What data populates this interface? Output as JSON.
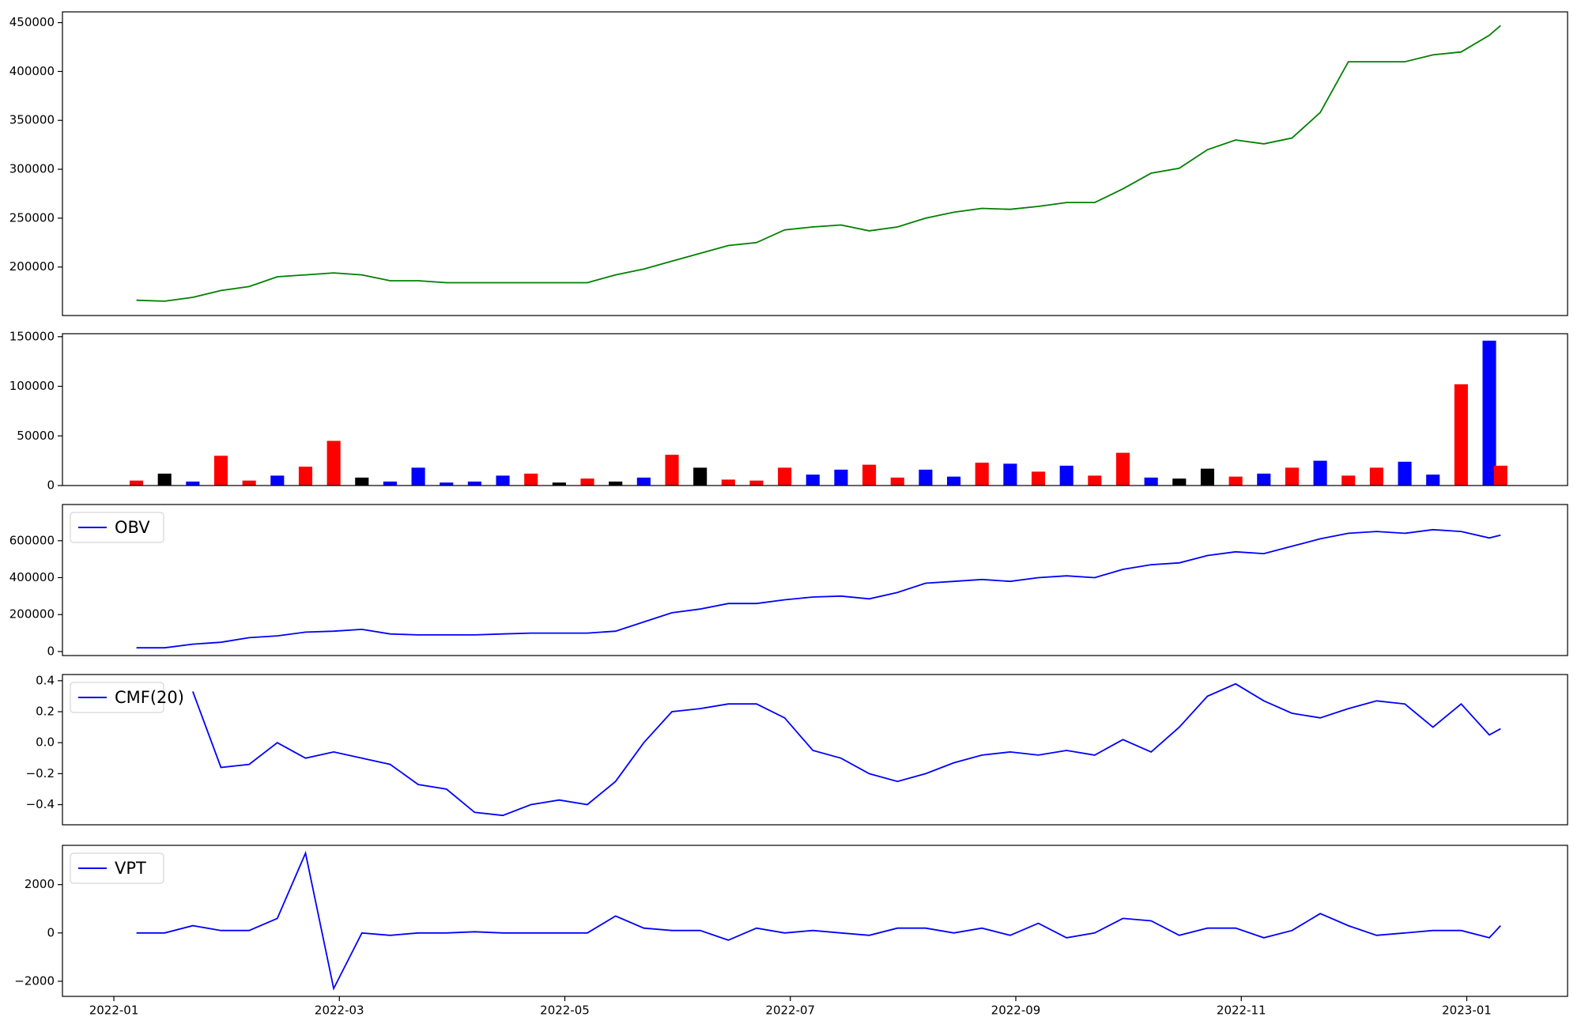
{
  "chart_data": [
    {
      "type": "line",
      "x": [
        1.2,
        1.45,
        1.7,
        1.95,
        2.2,
        2.45,
        2.7,
        2.95,
        3.2,
        3.45,
        3.7,
        3.95,
        4.2,
        4.45,
        4.7,
        4.95,
        5.2,
        5.45,
        5.7,
        5.95,
        6.2,
        6.45,
        6.7,
        6.95,
        7.2,
        7.45,
        7.7,
        7.95,
        8.2,
        8.45,
        8.7,
        8.95,
        9.2,
        9.45,
        9.7,
        9.95,
        10.2,
        10.45,
        10.7,
        10.95,
        11.2,
        11.45,
        11.7,
        11.95,
        12.2,
        12.45,
        12.7,
        12.95,
        13.2,
        13.3
      ],
      "series": [
        {
          "color": "green",
          "values": [
            166000,
            165000,
            169000,
            176000,
            180000,
            190000,
            192000,
            194000,
            192000,
            186000,
            186000,
            184000,
            184000,
            184000,
            184000,
            184000,
            184000,
            192000,
            198000,
            206000,
            214000,
            222000,
            225000,
            238000,
            241000,
            243000,
            237000,
            241000,
            250000,
            256000,
            260000,
            259000,
            262000,
            266000,
            266000,
            280000,
            296000,
            301000,
            320000,
            330000,
            326000,
            332000,
            358000,
            410000,
            410000,
            410000,
            417000,
            420000,
            437000,
            447000
          ]
        }
      ],
      "xlim": [
        0.544,
        13.894
      ],
      "ylim": [
        150400,
        461000
      ],
      "yticks": [
        200000,
        250000,
        300000,
        350000,
        400000,
        450000
      ]
    },
    {
      "type": "bar",
      "x": [
        1.2,
        1.45,
        1.7,
        1.95,
        2.2,
        2.45,
        2.7,
        2.95,
        3.2,
        3.45,
        3.7,
        3.95,
        4.2,
        4.45,
        4.7,
        4.95,
        5.2,
        5.45,
        5.7,
        5.95,
        6.2,
        6.45,
        6.7,
        6.95,
        7.2,
        7.45,
        7.7,
        7.95,
        8.2,
        8.45,
        8.7,
        8.95,
        9.2,
        9.45,
        9.7,
        9.95,
        10.2,
        10.45,
        10.7,
        10.95,
        11.2,
        11.45,
        11.7,
        11.95,
        12.2,
        12.45,
        12.7,
        12.95,
        13.2,
        13.3
      ],
      "values": [
        5000,
        12000,
        4000,
        30000,
        5000,
        10000,
        19000,
        45000,
        8000,
        4000,
        18000,
        3000,
        4000,
        10000,
        12000,
        3000,
        7000,
        4000,
        8000,
        31000,
        18000,
        6000,
        5000,
        18000,
        11000,
        16000,
        21000,
        8000,
        16000,
        9000,
        23000,
        22000,
        14000,
        20000,
        10000,
        33000,
        8000,
        7000,
        17000,
        9000,
        12000,
        18000,
        25000,
        10000,
        18000,
        24000,
        11000,
        102000,
        146000,
        20000
      ],
      "colors": [
        "red",
        "black",
        "blue",
        "red",
        "red",
        "blue",
        "red",
        "red",
        "black",
        "blue",
        "blue",
        "blue",
        "blue",
        "blue",
        "red",
        "black",
        "red",
        "black",
        "blue",
        "red",
        "black",
        "red",
        "red",
        "red",
        "blue",
        "blue",
        "red",
        "red",
        "blue",
        "blue",
        "red",
        "blue",
        "red",
        "blue",
        "red",
        "red",
        "blue",
        "black",
        "black",
        "red",
        "blue",
        "red",
        "blue",
        "red",
        "red",
        "blue",
        "blue",
        "red",
        "blue",
        "red"
      ],
      "xlim": [
        0.544,
        13.894
      ],
      "ylim": [
        0,
        153000
      ],
      "yticks": [
        0,
        50000,
        100000,
        150000
      ]
    },
    {
      "type": "line",
      "x": [
        1.2,
        1.45,
        1.7,
        1.95,
        2.2,
        2.45,
        2.7,
        2.95,
        3.2,
        3.45,
        3.7,
        3.95,
        4.2,
        4.45,
        4.7,
        4.95,
        5.2,
        5.45,
        5.7,
        5.95,
        6.2,
        6.45,
        6.7,
        6.95,
        7.2,
        7.45,
        7.7,
        7.95,
        8.2,
        8.45,
        8.7,
        8.95,
        9.2,
        9.45,
        9.7,
        9.95,
        10.2,
        10.45,
        10.7,
        10.95,
        11.2,
        11.45,
        11.7,
        11.95,
        12.2,
        12.45,
        12.7,
        12.95,
        13.2,
        13.3
      ],
      "series": [
        {
          "name": "OBV",
          "color": "blue",
          "values": [
            20000,
            20000,
            40000,
            50000,
            75000,
            85000,
            105000,
            110000,
            120000,
            95000,
            90000,
            90000,
            90000,
            95000,
            100000,
            100000,
            100000,
            110000,
            160000,
            210000,
            230000,
            260000,
            260000,
            280000,
            295000,
            300000,
            285000,
            320000,
            370000,
            380000,
            390000,
            380000,
            400000,
            410000,
            400000,
            445000,
            470000,
            480000,
            520000,
            540000,
            530000,
            570000,
            610000,
            640000,
            650000,
            640000,
            660000,
            650000,
            615000,
            630000
          ]
        }
      ],
      "legend": "upper left",
      "xlim": [
        0.544,
        13.894
      ],
      "ylim": [
        -21800,
        796000
      ],
      "yticks": [
        0,
        200000,
        400000,
        600000
      ]
    },
    {
      "type": "line",
      "x": [
        1.2,
        1.45,
        1.7,
        1.95,
        2.2,
        2.45,
        2.7,
        2.95,
        3.2,
        3.45,
        3.7,
        3.95,
        4.2,
        4.45,
        4.7,
        4.95,
        5.2,
        5.45,
        5.7,
        5.95,
        6.2,
        6.45,
        6.7,
        6.95,
        7.2,
        7.45,
        7.7,
        7.95,
        8.2,
        8.45,
        8.7,
        8.95,
        9.2,
        9.45,
        9.7,
        9.95,
        10.2,
        10.45,
        10.7,
        10.95,
        11.2,
        11.45,
        11.7,
        11.95,
        12.2,
        12.45,
        12.7,
        12.95,
        13.2,
        13.3
      ],
      "series": [
        {
          "name": "CMF(20)",
          "color": "blue",
          "values": [
            null,
            null,
            0.33,
            -0.16,
            -0.14,
            0.0,
            -0.1,
            -0.06,
            -0.1,
            -0.14,
            -0.27,
            -0.3,
            -0.45,
            -0.47,
            -0.4,
            -0.37,
            -0.4,
            -0.25,
            0.0,
            0.2,
            0.22,
            0.25,
            0.25,
            0.16,
            -0.05,
            -0.1,
            -0.2,
            -0.25,
            -0.2,
            -0.13,
            -0.08,
            -0.06,
            -0.08,
            -0.05,
            -0.08,
            0.02,
            -0.06,
            0.1,
            0.3,
            0.38,
            0.27,
            0.19,
            0.16,
            0.22,
            0.27,
            0.25,
            0.1,
            0.25,
            0.05,
            0.09
          ]
        }
      ],
      "legend": "upper left",
      "xlim": [
        0.544,
        13.894
      ],
      "ylim": [
        -0.53,
        0.44
      ],
      "yticks": [
        {
          "value": -0.4,
          "label": "−0.4"
        },
        {
          "value": -0.2,
          "label": "−0.2"
        },
        {
          "value": 0,
          "label": "0.0"
        },
        0.2,
        0.4
      ]
    },
    {
      "type": "line",
      "x": [
        1.2,
        1.45,
        1.7,
        1.95,
        2.2,
        2.45,
        2.7,
        2.95,
        3.2,
        3.45,
        3.7,
        3.95,
        4.2,
        4.45,
        4.7,
        4.95,
        5.2,
        5.45,
        5.7,
        5.95,
        6.2,
        6.45,
        6.7,
        6.95,
        7.2,
        7.45,
        7.7,
        7.95,
        8.2,
        8.45,
        8.7,
        8.95,
        9.2,
        9.45,
        9.7,
        9.95,
        10.2,
        10.45,
        10.7,
        10.95,
        11.2,
        11.45,
        11.7,
        11.95,
        12.2,
        12.45,
        12.7,
        12.95,
        13.2,
        13.3
      ],
      "series": [
        {
          "name": "VPT",
          "color": "blue",
          "values": [
            0,
            0,
            300,
            100,
            100,
            600,
            3300,
            -2300,
            0,
            -100,
            0,
            0,
            50,
            0,
            0,
            0,
            0,
            700,
            200,
            100,
            100,
            -300,
            200,
            0,
            100,
            0,
            -100,
            200,
            200,
            0,
            200,
            -100,
            400,
            -200,
            0,
            600,
            500,
            -100,
            200,
            200,
            -200,
            100,
            800,
            300,
            -100,
            0,
            100,
            100,
            -200,
            300
          ]
        }
      ],
      "legend": "upper left",
      "xlim": [
        0.544,
        13.894
      ],
      "ylim": [
        -2625,
        3625
      ],
      "yticks": [
        {
          "value": -2000,
          "label": "−2000"
        },
        0,
        2000
      ],
      "xticks": [
        {
          "value": 1,
          "label": "2022-01"
        },
        {
          "value": 3,
          "label": "2022-03"
        },
        {
          "value": 5,
          "label": "2022-05"
        },
        {
          "value": 7,
          "label": "2022-07"
        },
        {
          "value": 9,
          "label": "2022-09"
        },
        {
          "value": 11,
          "label": "2022-11"
        },
        {
          "value": 13,
          "label": "2023-01"
        }
      ]
    }
  ]
}
